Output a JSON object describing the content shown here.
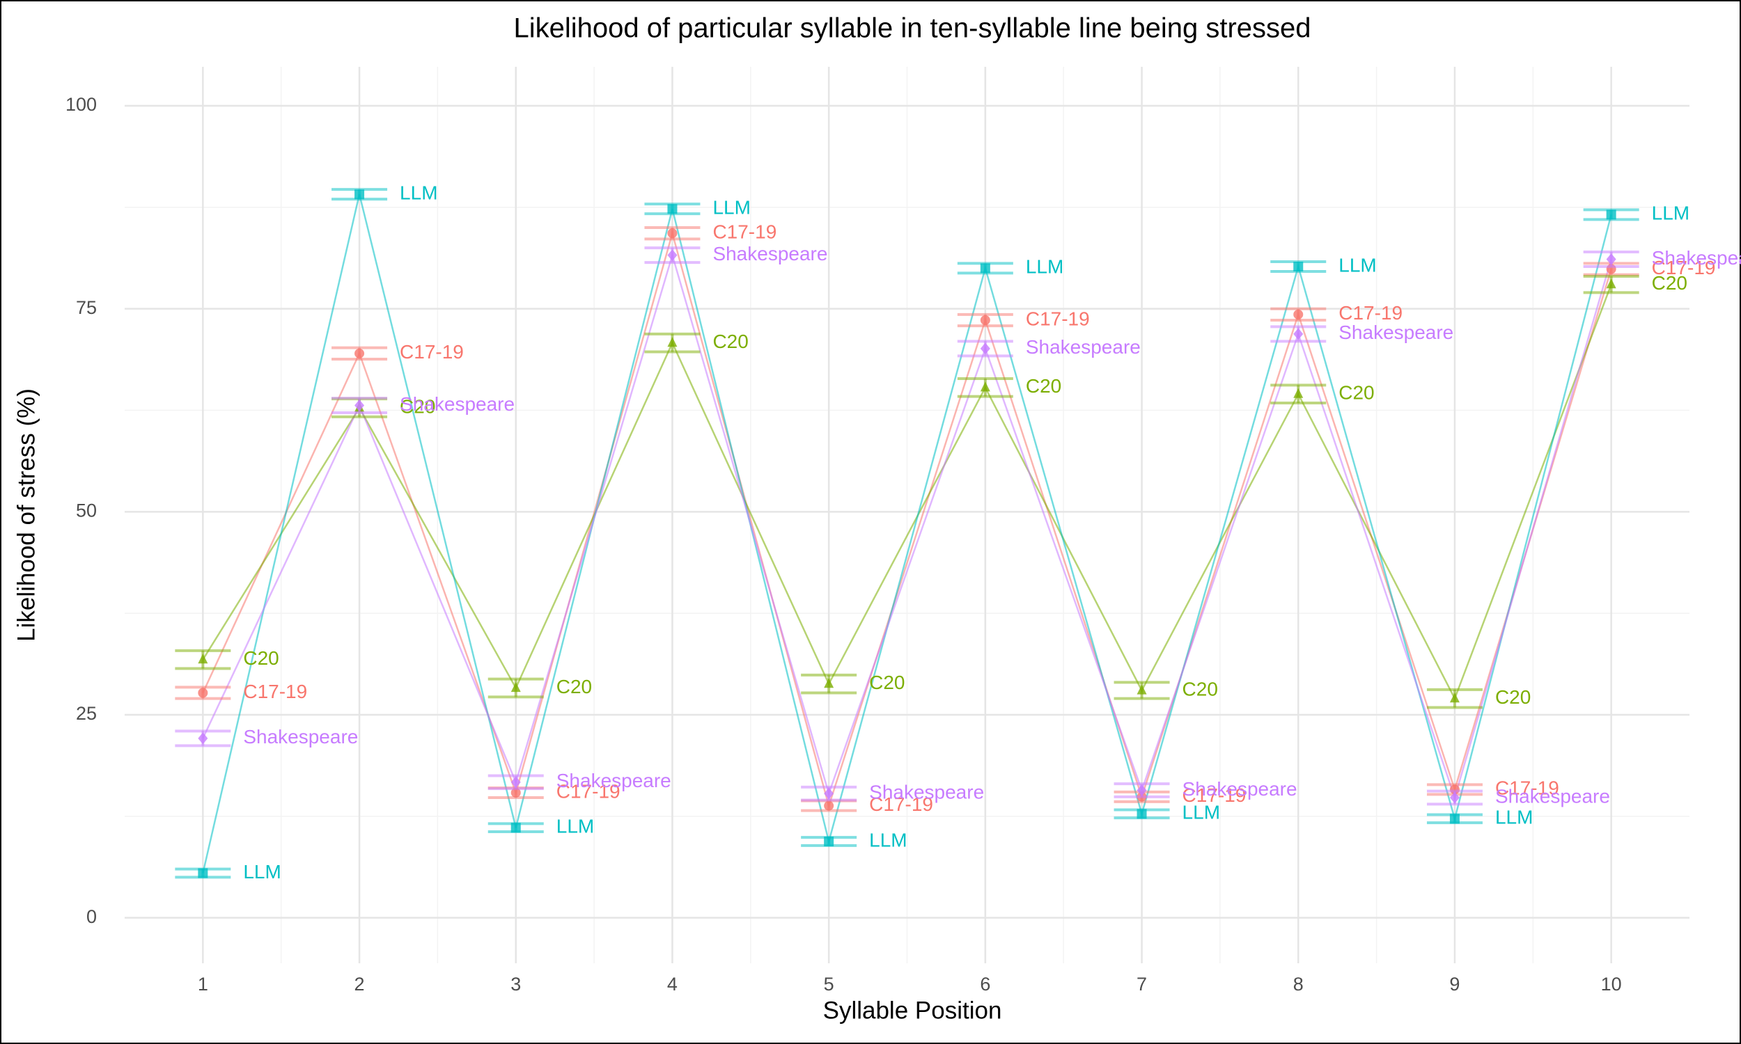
{
  "chart_data": {
    "type": "line",
    "title": "Likelihood of particular syllable in ten-syllable line being stressed",
    "x_label": "Syllable Position",
    "y_label": "Likelihood of stress (%)",
    "x": [
      1,
      2,
      3,
      4,
      5,
      6,
      7,
      8,
      9,
      10
    ],
    "xlim": [
      0.5,
      10.5
    ],
    "xticks": [
      1,
      2,
      3,
      4,
      5,
      6,
      7,
      8,
      9,
      10
    ],
    "ylim": [
      -5.6,
      104.8
    ],
    "yticks": [
      0,
      25,
      50,
      75,
      100
    ],
    "grid": true,
    "series": [
      {
        "name": "C17-19",
        "color": "#F8766D",
        "marker": "circle",
        "values": [
          27.7,
          69.5,
          15.4,
          84.3,
          13.8,
          73.6,
          14.9,
          74.3,
          15.8,
          79.9
        ],
        "errors": [
          0.7,
          0.7,
          0.6,
          0.7,
          0.6,
          0.7,
          0.6,
          0.7,
          0.6,
          0.7
        ]
      },
      {
        "name": "C20",
        "color": "#7CAE00",
        "marker": "triangle",
        "values": [
          31.8,
          62.8,
          28.3,
          70.8,
          28.8,
          65.3,
          28.0,
          64.5,
          27.0,
          78.0
        ],
        "errors": [
          1.1,
          1.1,
          1.1,
          1.1,
          1.1,
          1.1,
          1.0,
          1.1,
          1.1,
          1.0
        ]
      },
      {
        "name": "LLM",
        "color": "#00BFC4",
        "marker": "square",
        "values": [
          5.5,
          89.1,
          11.1,
          87.3,
          9.4,
          80.0,
          12.8,
          80.2,
          12.2,
          86.6
        ],
        "errors": [
          0.5,
          0.6,
          0.5,
          0.6,
          0.5,
          0.6,
          0.5,
          0.6,
          0.5,
          0.6
        ]
      },
      {
        "name": "Shakespeare",
        "color": "#C77CFF",
        "marker": "diamond",
        "values": [
          22.1,
          63.1,
          16.7,
          81.6,
          15.3,
          70.1,
          15.7,
          71.9,
          14.8,
          81.1
        ],
        "errors": [
          0.9,
          0.9,
          0.8,
          0.9,
          0.8,
          0.9,
          0.8,
          0.9,
          0.8,
          0.9
        ]
      }
    ]
  }
}
